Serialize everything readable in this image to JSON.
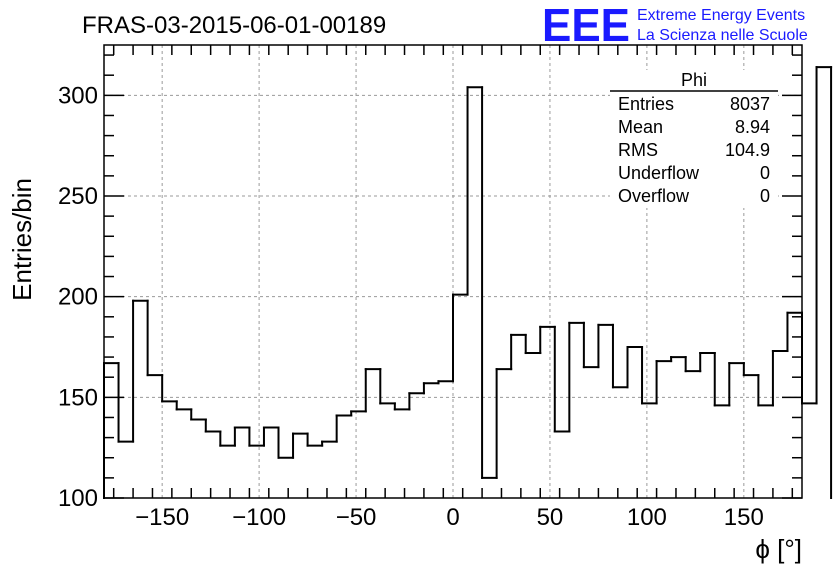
{
  "header": {
    "title": "FRAS-03-2015-06-01-00189",
    "logo_text": "EEE",
    "logo_line1": "Extreme Energy Events",
    "logo_line2": "La Scienza nelle Scuole",
    "logo_color": "#1a1aff"
  },
  "stats_box": {
    "title": "Phi",
    "rows": [
      {
        "label": "Entries",
        "value": "8037"
      },
      {
        "label": "Mean",
        "value": "8.94"
      },
      {
        "label": "RMS",
        "value": "104.9"
      },
      {
        "label": "Underflow",
        "value": "0"
      },
      {
        "label": "Overflow",
        "value": "0"
      }
    ]
  },
  "chart_data": {
    "type": "bar",
    "histogram": true,
    "title": "FRAS-03-2015-06-01-00189",
    "xlabel": "ϕ [°]",
    "ylabel": "Entries/bin",
    "xlim": [
      -180,
      180
    ],
    "ylim": [
      100,
      325
    ],
    "x_ticks": [
      -150,
      -100,
      -50,
      0,
      50,
      100,
      150
    ],
    "x_tick_labels": [
      "−150",
      "−100",
      "−50",
      "0",
      "50",
      "100",
      "150"
    ],
    "y_ticks": [
      100,
      150,
      200,
      250,
      300
    ],
    "y_tick_labels": [
      "100",
      "150",
      "200",
      "250",
      "300"
    ],
    "grid": true,
    "bin_width": 7.5,
    "bin_edges_start": -180,
    "values": [
      167,
      128,
      198,
      161,
      148,
      144,
      139,
      133,
      126,
      135,
      126,
      135,
      120,
      132,
      126,
      128,
      141,
      143,
      164,
      147,
      144,
      152,
      157,
      158,
      201,
      304,
      110,
      164,
      181,
      172,
      185,
      133,
      187,
      165,
      186,
      155,
      175,
      147,
      168,
      170,
      163,
      172,
      146,
      167,
      161,
      146,
      173,
      192,
      147,
      314
    ],
    "line_color": "#000000"
  }
}
